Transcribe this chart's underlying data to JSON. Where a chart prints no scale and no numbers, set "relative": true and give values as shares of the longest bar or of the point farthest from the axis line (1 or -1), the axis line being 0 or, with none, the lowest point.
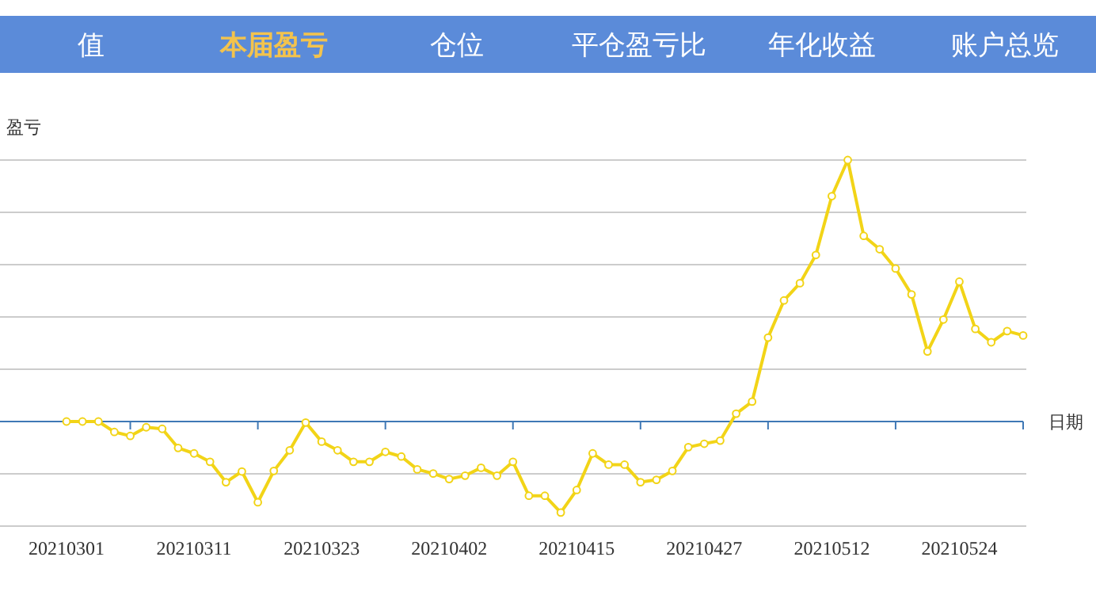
{
  "chart_data": {
    "type": "line",
    "relative": true,
    "title": "本届盈亏",
    "annotations": [
      "值",
      "仓位",
      "平仓盈亏比",
      "年化收益",
      "账户总览"
    ],
    "ylabel": "盈亏",
    "xlabel": "日期",
    "categories": [
      "20210301",
      null,
      null,
      null,
      null,
      null,
      null,
      null,
      "20210311",
      null,
      null,
      null,
      null,
      null,
      null,
      null,
      "20210323",
      null,
      null,
      null,
      null,
      null,
      null,
      null,
      "20210402",
      null,
      null,
      null,
      null,
      null,
      null,
      null,
      "20210415",
      null,
      null,
      null,
      null,
      null,
      null,
      null,
      "20210427",
      null,
      null,
      null,
      null,
      null,
      null,
      null,
      "20210512",
      null,
      null,
      null,
      null,
      null,
      null,
      null,
      "20210524",
      null,
      null,
      null,
      null
    ],
    "series": [
      {
        "color": "#f2d417",
        "values": [
          0,
          0,
          0,
          -0.04,
          -0.055,
          -0.022,
          -0.028,
          -0.101,
          -0.122,
          -0.154,
          -0.232,
          -0.191,
          -0.309,
          -0.189,
          -0.11,
          -0.004,
          -0.077,
          -0.11,
          -0.154,
          -0.154,
          -0.116,
          -0.134,
          -0.183,
          -0.199,
          -0.22,
          -0.207,
          -0.177,
          -0.207,
          -0.154,
          -0.284,
          -0.284,
          -0.348,
          -0.262,
          -0.122,
          -0.165,
          -0.165,
          -0.232,
          -0.223,
          -0.189,
          -0.098,
          -0.085,
          -0.073,
          0.03,
          0.076,
          0.321,
          0.463,
          0.529,
          0.637,
          0.862,
          1,
          0.71,
          0.659,
          0.585,
          0.486,
          0.268,
          0.39,
          0.535,
          0.354,
          0.303,
          0.346,
          0.329
        ]
      }
    ],
    "ref_lines": [
      {
        "axis": "y",
        "value": 0,
        "color": "#3f78b5"
      }
    ],
    "marker": "circle",
    "line_style": "solid",
    "grid": "y"
  }
}
